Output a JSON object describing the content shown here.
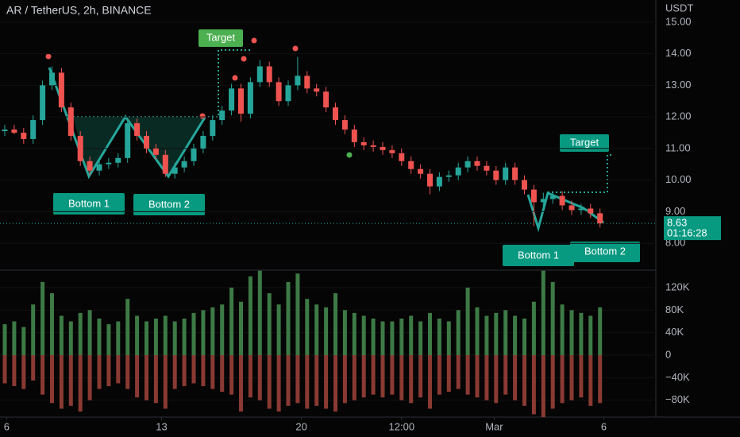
{
  "chart_data": [
    {
      "type": "candlestick",
      "title": "AR / TetherUS, 2h, BINANCE",
      "y_unit": "USDT",
      "up_color": "#26a69a",
      "down_color": "#ef5350",
      "ylim": [
        7.2,
        15.7
      ],
      "yticks": [
        {
          "value": 8,
          "label": "8.00"
        },
        {
          "value": 9,
          "label": "9.00"
        },
        {
          "value": 10,
          "label": "10.00"
        },
        {
          "value": 11,
          "label": "11.00"
        },
        {
          "value": 12,
          "label": "12.00"
        },
        {
          "value": 13,
          "label": "13.00"
        },
        {
          "value": 14,
          "label": "14.00"
        },
        {
          "value": 15,
          "label": "15.00"
        }
      ],
      "last_price": {
        "value": 8.63,
        "label": "8.63",
        "countdown": "01:16:28"
      },
      "annotations": {
        "target_left": "Target",
        "target_right": "Target",
        "bottom1_left": "Bottom 1",
        "bottom2_left": "Bottom 2",
        "bottom1_right": "Bottom 1",
        "bottom2_right": "Bottom 2"
      },
      "open": [
        11.55,
        11.6,
        11.5,
        11.3,
        11.9,
        13.0,
        13.4,
        12.3,
        11.4,
        10.6,
        10.3,
        10.5,
        10.55,
        10.7,
        11.8,
        11.4,
        11.0,
        10.8,
        10.2,
        10.4,
        10.6,
        11.0,
        11.4,
        11.9,
        12.2,
        12.9,
        12.1,
        13.1,
        13.6,
        13.1,
        12.5,
        13.0,
        13.3,
        12.9,
        12.8,
        12.3,
        11.9,
        11.6,
        11.2,
        11.1,
        11.05,
        10.95,
        10.85,
        10.6,
        10.35,
        10.2,
        9.8,
        10.1,
        10.15,
        10.4,
        10.6,
        10.45,
        10.3,
        10.0,
        10.4,
        10.0,
        9.7,
        9.3,
        9.4,
        9.5,
        9.2,
        9.05,
        9.1,
        8.95
      ],
      "high": [
        11.75,
        11.75,
        11.65,
        12.05,
        13.15,
        13.6,
        13.55,
        12.45,
        11.55,
        10.75,
        10.65,
        10.7,
        10.85,
        11.95,
        11.95,
        11.55,
        11.15,
        10.95,
        10.55,
        10.75,
        11.15,
        11.55,
        12.05,
        12.35,
        13.05,
        13.05,
        13.25,
        13.8,
        13.75,
        13.25,
        13.15,
        13.9,
        13.45,
        13.05,
        12.95,
        12.45,
        12.05,
        11.75,
        11.35,
        11.25,
        11.2,
        11.1,
        11.0,
        10.75,
        10.5,
        10.35,
        10.25,
        10.3,
        10.55,
        10.75,
        10.75,
        10.6,
        10.45,
        10.55,
        10.55,
        10.15,
        9.85,
        9.6,
        9.65,
        9.65,
        9.35,
        9.25,
        9.25,
        9.1
      ],
      "low": [
        11.4,
        11.45,
        11.15,
        11.15,
        11.75,
        12.85,
        12.15,
        11.25,
        10.45,
        10.15,
        10.15,
        10.35,
        10.4,
        10.55,
        11.25,
        10.85,
        10.65,
        10.1,
        10.05,
        10.25,
        10.45,
        10.85,
        11.25,
        11.75,
        12.05,
        11.85,
        11.95,
        12.95,
        12.95,
        12.35,
        12.35,
        12.85,
        12.75,
        12.65,
        12.15,
        11.75,
        11.45,
        11.05,
        10.95,
        10.9,
        10.8,
        10.7,
        10.45,
        10.2,
        10.05,
        9.55,
        9.65,
        9.95,
        10.0,
        10.25,
        10.3,
        10.15,
        9.85,
        9.85,
        9.85,
        9.55,
        8.55,
        9.15,
        9.25,
        9.05,
        8.9,
        8.9,
        8.8,
        8.5
      ],
      "close": [
        11.6,
        11.5,
        11.3,
        11.9,
        13.0,
        13.4,
        12.3,
        11.4,
        10.6,
        10.3,
        10.5,
        10.55,
        10.7,
        11.8,
        11.4,
        11.0,
        10.8,
        10.2,
        10.4,
        10.6,
        11.0,
        11.4,
        11.9,
        12.2,
        12.9,
        12.1,
        13.1,
        13.6,
        13.1,
        12.5,
        13.0,
        13.3,
        12.9,
        12.8,
        12.3,
        11.9,
        11.6,
        11.2,
        11.1,
        11.05,
        10.95,
        10.85,
        10.6,
        10.35,
        10.2,
        9.8,
        10.1,
        10.15,
        10.4,
        10.6,
        10.45,
        10.3,
        10.0,
        10.4,
        10.0,
        9.7,
        9.3,
        9.4,
        9.5,
        9.2,
        9.05,
        9.1,
        8.95,
        8.63
      ]
    },
    {
      "type": "bar",
      "buy_color": "#3d7a45",
      "sell_color": "#8a3a33",
      "ylim": [
        -110000,
        151000
      ],
      "yticks": [
        {
          "value": -80000,
          "label": "−80K"
        },
        {
          "value": -40000,
          "label": "−40K"
        },
        0,
        {
          "value": 40000,
          "label": "40K"
        },
        {
          "value": 80000,
          "label": "80K"
        },
        {
          "value": 120000,
          "label": "120K"
        }
      ],
      "xticks": [
        {
          "value": 0.2,
          "label": "6"
        },
        {
          "value": 16.6,
          "label": "13"
        },
        {
          "value": 31.4,
          "label": "20"
        },
        {
          "value": 42,
          "label": "12:00"
        },
        {
          "value": 51.8,
          "label": "Mar"
        },
        {
          "value": 63.4,
          "label": "6"
        }
      ],
      "buy": [
        55000,
        60000,
        50000,
        90000,
        130000,
        110000,
        70000,
        60000,
        75000,
        80000,
        65000,
        55000,
        60000,
        100000,
        70000,
        60000,
        65000,
        70000,
        60000,
        65000,
        75000,
        80000,
        85000,
        90000,
        120000,
        95000,
        140000,
        150000,
        110000,
        90000,
        130000,
        145000,
        100000,
        90000,
        85000,
        110000,
        80000,
        75000,
        70000,
        65000,
        60000,
        60000,
        65000,
        70000,
        60000,
        75000,
        65000,
        60000,
        80000,
        120000,
        85000,
        70000,
        75000,
        80000,
        70000,
        65000,
        95000,
        150000,
        130000,
        90000,
        80000,
        75000,
        70000,
        85000
      ],
      "sell": [
        -50000,
        -55000,
        -60000,
        -45000,
        -70000,
        -85000,
        -95000,
        -90000,
        -100000,
        -80000,
        -60000,
        -55000,
        -50000,
        -60000,
        -75000,
        -80000,
        -85000,
        -95000,
        -60000,
        -55000,
        -50000,
        -55000,
        -60000,
        -65000,
        -70000,
        -100000,
        -75000,
        -80000,
        -95000,
        -100000,
        -90000,
        -85000,
        -95000,
        -90000,
        -95000,
        -100000,
        -85000,
        -80000,
        -75000,
        -70000,
        -75000,
        -70000,
        -80000,
        -85000,
        -75000,
        -95000,
        -70000,
        -65000,
        -60000,
        -70000,
        -75000,
        -80000,
        -85000,
        -70000,
        -80000,
        -90000,
        -105000,
        -110000,
        -95000,
        -85000,
        -80000,
        -75000,
        -90000,
        -85000
      ]
    }
  ]
}
